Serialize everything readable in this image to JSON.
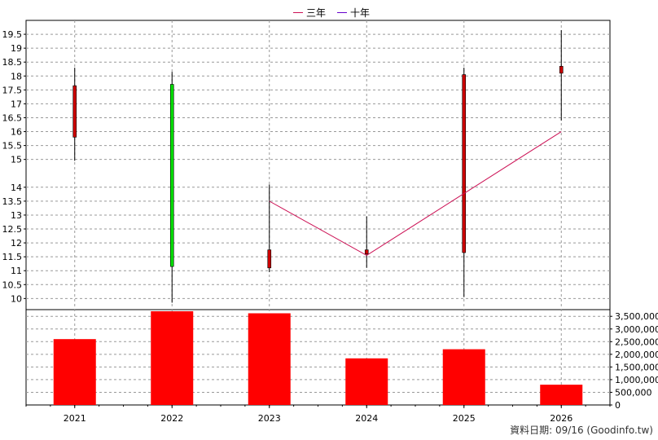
{
  "legend": [
    {
      "label": "三年",
      "color": "#cc1155"
    },
    {
      "label": "十年",
      "color": "#6600cc"
    }
  ],
  "footer": "資料日期: 09/16  (Goodinfo.tw)",
  "colors": {
    "up": "#00dd00",
    "down": "#cc0000",
    "volume": "#ff0000",
    "grid": "#999999",
    "line3y": "#cc1155"
  },
  "chart_data": {
    "type": "candlestick+bar",
    "years": [
      "2021",
      "2022",
      "2023",
      "2024",
      "2025",
      "2026"
    ],
    "price_axis": {
      "ylim": [
        9.6,
        20.0
      ],
      "ticks": [
        10,
        10.5,
        11,
        11.5,
        12,
        12.5,
        13,
        13.5,
        14,
        15,
        15.5,
        16,
        16.5,
        17,
        17.5,
        18,
        18.5,
        19,
        19.5
      ]
    },
    "candles": [
      {
        "year": "2021",
        "open": 17.65,
        "close": 15.8,
        "high": 18.3,
        "low": 14.95,
        "dir": "down"
      },
      {
        "year": "2022",
        "open": 11.15,
        "close": 17.7,
        "high": 18.15,
        "low": 9.85,
        "dir": "up"
      },
      {
        "year": "2023",
        "open": 11.75,
        "close": 11.1,
        "high": 14.1,
        "low": 10.95,
        "dir": "down"
      },
      {
        "year": "2024",
        "open": 11.75,
        "close": 11.6,
        "high": 12.95,
        "low": 11.1,
        "dir": "down"
      },
      {
        "year": "2025",
        "open": 18.05,
        "close": 11.65,
        "high": 18.3,
        "low": 10.05,
        "dir": "down"
      },
      {
        "year": "2026",
        "open": 18.35,
        "close": 18.1,
        "high": 19.65,
        "low": 16.4,
        "dir": "down"
      }
    ],
    "line_three_year": {
      "name": "三年",
      "x": [
        "2023",
        "2024",
        "2026"
      ],
      "y": [
        13.5,
        11.55,
        16.0
      ]
    },
    "volume_axis": {
      "ylim": [
        0,
        3700000
      ],
      "ticks": [
        0,
        500000,
        1000000,
        1500000,
        2000000,
        2500000,
        3000000,
        3500000
      ],
      "tick_labels": [
        "0",
        "500,000",
        "1,000,000",
        "1,500,000",
        "2,000,000",
        "2,500,000",
        "3,000,000",
        "3,500,000"
      ]
    },
    "volume": [
      2600000,
      3700000,
      3620000,
      1840000,
      2200000,
      800000
    ]
  }
}
